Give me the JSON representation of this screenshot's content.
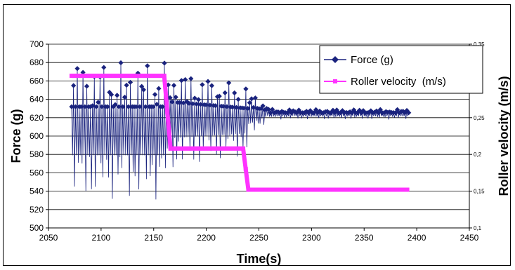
{
  "chart_data": {
    "type": "line",
    "xlabel": "Time(s)",
    "ylabel": "Force (g)",
    "y2label": "Roller velocity (m/s)",
    "xlim": [
      2050,
      2450
    ],
    "ylim": [
      500,
      700
    ],
    "y2lim": [
      0.1,
      0.35
    ],
    "x_ticks": [
      "2050",
      "2100",
      "2150",
      "2200",
      "2250",
      "2300",
      "2350",
      "2400",
      "2450"
    ],
    "y_ticks": [
      "500",
      "520",
      "540",
      "560",
      "580",
      "600",
      "620",
      "640",
      "660",
      "680",
      "700"
    ],
    "y2_ticks": [
      "0,1",
      "0,15",
      "0,2",
      "0,25",
      "0,3",
      "0,35"
    ],
    "grid": "horizontal",
    "legend_position": "top-right",
    "series": [
      {
        "name": "Force (g)",
        "axis": "left",
        "color": "#1a237e",
        "marker": "diamond",
        "segments": [
          {
            "x_start": 2072,
            "x_end": 2162,
            "min": 530,
            "max": 681
          },
          {
            "x_start": 2162,
            "x_end": 2240,
            "min_start": 560,
            "min_end": 578,
            "max_start": 675,
            "max_end": 655
          },
          {
            "x_start": 2240,
            "x_end": 2260,
            "min_start": 595,
            "min_end": 618,
            "max_start": 650,
            "max_end": 632
          },
          {
            "x_start": 2260,
            "x_end": 2393,
            "min": 618,
            "max": 629
          }
        ]
      },
      {
        "name": "Roller velocity  (m/s)",
        "axis": "right",
        "color": "#ff33ff",
        "marker": "square",
        "x": [
          2072,
          2160,
          2166,
          2235,
          2240,
          2393
        ],
        "y": [
          0.307,
          0.307,
          0.208,
          0.208,
          0.152,
          0.152
        ]
      }
    ]
  }
}
